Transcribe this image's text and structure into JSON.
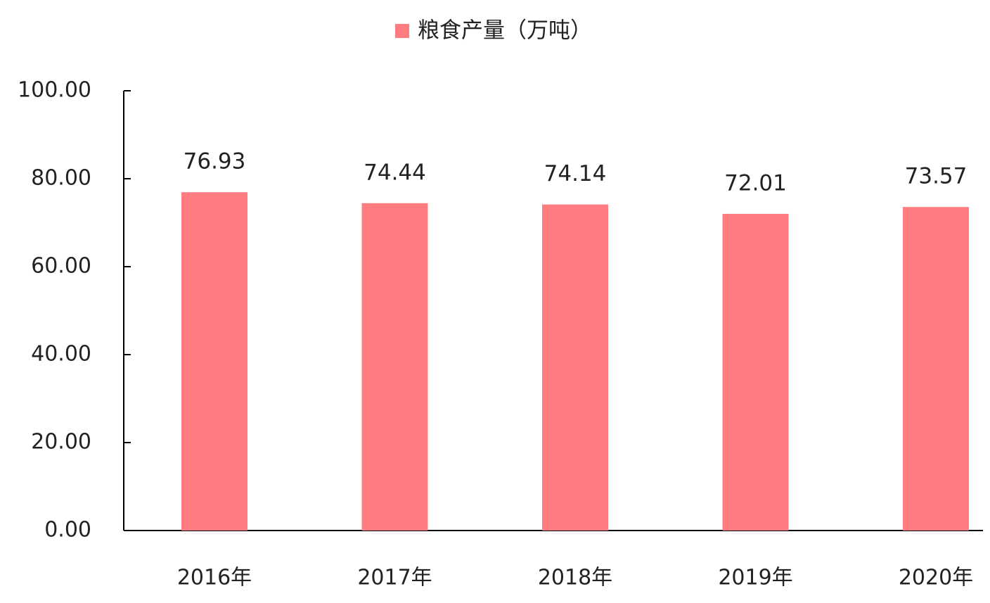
{
  "chart_data": {
    "type": "bar",
    "categories": [
      "2016年",
      "2017年",
      "2018年",
      "2019年",
      "2020年"
    ],
    "series": [
      {
        "name": "粮食产量（万吨）",
        "color": "#ff7c80",
        "values": [
          76.93,
          74.44,
          74.14,
          72.01,
          73.57
        ]
      }
    ],
    "ylim": [
      0,
      100
    ],
    "yticks": [
      {
        "value": 0,
        "label": "0.00"
      },
      {
        "value": 20,
        "label": "20.00"
      },
      {
        "value": 40,
        "label": "40.00"
      },
      {
        "value": 60,
        "label": "60.00"
      },
      {
        "value": 80,
        "label": "80.00"
      },
      {
        "value": 100,
        "label": "100.00"
      }
    ],
    "legend": "top"
  }
}
